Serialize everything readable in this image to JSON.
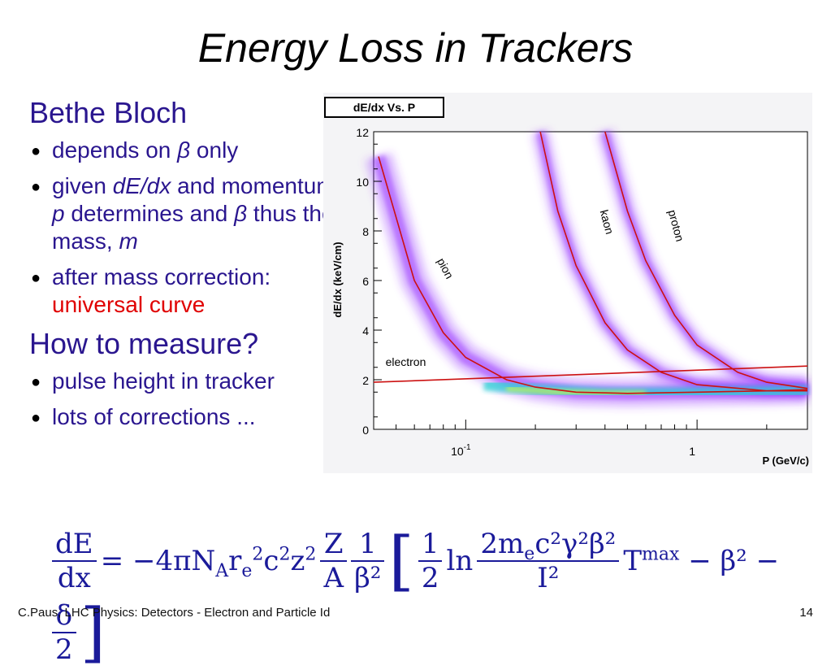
{
  "slide": {
    "title": "Energy Loss in Trackers",
    "sections": [
      {
        "heading": "Bethe Bloch",
        "bullets": [
          {
            "t1": "depends on ",
            "t1_it": "β",
            "t1b": " only"
          },
          {
            "t1": "given ",
            "t1_it": "dE/dx",
            "t1b": " and momentum ",
            "t2_it": "p",
            "t2b": " determines and ",
            "t3_it": "β",
            "t3b": " thus the mass, ",
            "t4_it": "m"
          },
          {
            "t1": "after mass correction: ",
            "red": "universal curve"
          }
        ]
      },
      {
        "heading": "How to measure?",
        "bullets": [
          {
            "t1": "pulse height in tracker"
          },
          {
            "t1": "lots of corrections ..."
          }
        ]
      }
    ],
    "footer_left": "C.Paus, LHC Physics:  Detectors - Electron and Particle Id",
    "footer_right": "14"
  },
  "formula": {
    "lhs_num": "dE",
    "lhs_den": "dx",
    "eq": "= −4πN",
    "N_sub": "A",
    "r": "r",
    "r_sub": "e",
    "r_sup": "2",
    "c": "c",
    "c_sup": "2",
    "z": "z",
    "z_sup": "2",
    "f1_num": "Z",
    "f1_den": "A",
    "f2_num": "1",
    "f2_den": "β²",
    "f3_num": "1",
    "f3_den": "2",
    "ln": "ln",
    "f4_num": "2m",
    "f4_num_sub": "e",
    "f4_num_rest": "c²γ²β²",
    "f4_den": "I²",
    "T": "T",
    "T_sup": "max",
    "tail": "− β² −",
    "f5_num": "δ",
    "f5_den": "2",
    "lbracket": "[",
    "rbracket": "]"
  },
  "chart_data": {
    "type": "scatter",
    "title": "dE/dx Vs. P",
    "xlabel": "P (GeV/c)",
    "ylabel": "dE/dx (keV/cm)",
    "x_scale": "log",
    "xlim": [
      0.04,
      3
    ],
    "ylim": [
      0,
      12
    ],
    "x_ticks": [
      {
        "value": 0.1,
        "label": "10",
        "sup": "-1"
      },
      {
        "value": 1,
        "label": "1",
        "sup": ""
      }
    ],
    "y_ticks": [
      0,
      2,
      4,
      6,
      8,
      10,
      12
    ],
    "annotations": [
      "pion",
      "kaon",
      "proton",
      "electron"
    ],
    "colors": {
      "curve": "#cc1111",
      "band_outer": "#9b3cff",
      "band_inner": "#2ad4d4",
      "band_core": "#d8ff3a"
    },
    "series": [
      {
        "name": "pion",
        "x": [
          0.042,
          0.06,
          0.08,
          0.1,
          0.15,
          0.2,
          0.3,
          0.5,
          1,
          2,
          3
        ],
        "y": [
          11.0,
          6.0,
          3.9,
          2.9,
          2.0,
          1.7,
          1.5,
          1.45,
          1.5,
          1.55,
          1.6
        ]
      },
      {
        "name": "kaon",
        "x": [
          0.21,
          0.25,
          0.3,
          0.4,
          0.5,
          0.7,
          1,
          2,
          3
        ],
        "y": [
          12.0,
          8.8,
          6.6,
          4.3,
          3.2,
          2.3,
          1.8,
          1.55,
          1.55
        ]
      },
      {
        "name": "proton",
        "x": [
          0.4,
          0.5,
          0.6,
          0.8,
          1,
          1.5,
          2,
          3
        ],
        "y": [
          12.0,
          8.8,
          6.8,
          4.6,
          3.4,
          2.3,
          1.9,
          1.65
        ]
      },
      {
        "name": "electron",
        "x": [
          0.04,
          3
        ],
        "y": [
          1.9,
          2.55
        ]
      }
    ]
  }
}
